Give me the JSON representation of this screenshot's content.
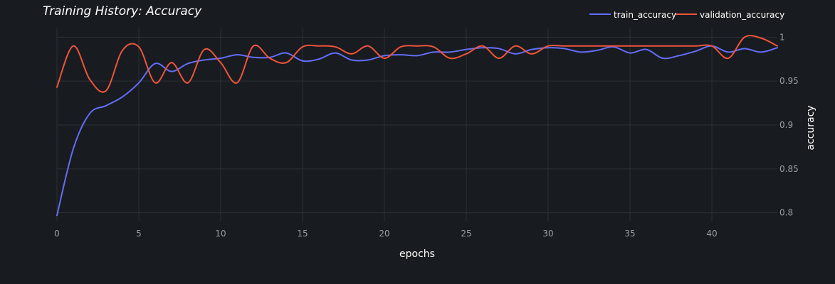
{
  "chart_data": {
    "type": "line",
    "title": "Training History: Accuracy",
    "xlabel": "epochs",
    "ylabel": "accuracy",
    "xlim": [
      0,
      44
    ],
    "ylim": [
      0.79,
      1.01
    ],
    "x_ticks": [
      0,
      5,
      10,
      15,
      20,
      25,
      30,
      35,
      40
    ],
    "y_ticks": [
      0.8,
      0.85,
      0.9,
      0.95,
      1
    ],
    "y_tick_labels": [
      "0.8",
      "0.85",
      "0.9",
      "0.95",
      "1"
    ],
    "grid": true,
    "legend_position": "top-right",
    "x": [
      0,
      1,
      2,
      3,
      4,
      5,
      6,
      7,
      8,
      9,
      10,
      11,
      12,
      13,
      14,
      15,
      16,
      17,
      18,
      19,
      20,
      21,
      22,
      23,
      24,
      25,
      26,
      27,
      28,
      29,
      30,
      31,
      32,
      33,
      34,
      35,
      36,
      37,
      38,
      39,
      40,
      41,
      42,
      43,
      44
    ],
    "series": [
      {
        "name": "train_accuracy",
        "color": "#636efa",
        "values": [
          0.797,
          0.873,
          0.913,
          0.922,
          0.932,
          0.948,
          0.97,
          0.961,
          0.97,
          0.974,
          0.976,
          0.98,
          0.977,
          0.977,
          0.982,
          0.973,
          0.975,
          0.982,
          0.974,
          0.974,
          0.979,
          0.98,
          0.979,
          0.983,
          0.983,
          0.986,
          0.988,
          0.987,
          0.981,
          0.986,
          0.988,
          0.987,
          0.983,
          0.985,
          0.989,
          0.982,
          0.986,
          0.976,
          0.979,
          0.984,
          0.99,
          0.983,
          0.987,
          0.983,
          0.988
        ]
      },
      {
        "name": "validation_accuracy",
        "color": "#ef553b",
        "values": [
          0.943,
          0.99,
          0.952,
          0.939,
          0.985,
          0.989,
          0.948,
          0.971,
          0.948,
          0.986,
          0.971,
          0.948,
          0.99,
          0.976,
          0.971,
          0.989,
          0.99,
          0.989,
          0.981,
          0.99,
          0.976,
          0.989,
          0.99,
          0.989,
          0.976,
          0.981,
          0.99,
          0.976,
          0.99,
          0.981,
          0.99,
          0.99,
          0.99,
          0.99,
          0.99,
          0.99,
          0.99,
          0.99,
          0.99,
          0.99,
          0.99,
          0.976,
          1.0,
          0.999,
          0.99
        ]
      }
    ]
  }
}
